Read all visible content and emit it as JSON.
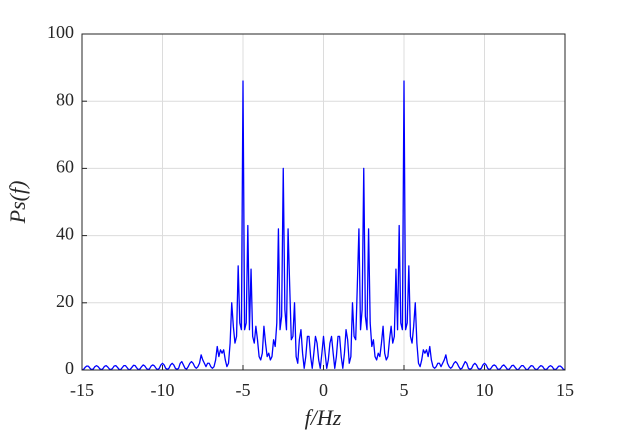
{
  "chart_data": {
    "type": "line",
    "xlabel": "f/Hz",
    "ylabel": "Ps(f)",
    "color": "#0000ff",
    "grid": true,
    "xlim": [
      -15,
      15
    ],
    "xticks": [
      -15,
      -10,
      -5,
      0,
      5,
      10,
      15
    ],
    "ylim": [
      0,
      100
    ],
    "yticks": [
      0,
      20,
      40,
      60,
      80,
      100
    ],
    "x": [
      -15,
      -14.9,
      -14.8,
      -14.7,
      -14.6,
      -14.5,
      -14.4,
      -14.3,
      -14.2,
      -14.1,
      -14,
      -13.9,
      -13.8,
      -13.7,
      -13.6,
      -13.5,
      -13.4,
      -13.3,
      -13.2,
      -13.1,
      -13,
      -12.9,
      -12.8,
      -12.7,
      -12.6,
      -12.5,
      -12.4,
      -12.3,
      -12.2,
      -12.1,
      -12,
      -11.9,
      -11.8,
      -11.7,
      -11.6,
      -11.5,
      -11.4,
      -11.3,
      -11.2,
      -11.1,
      -11,
      -10.9,
      -10.8,
      -10.7,
      -10.6,
      -10.5,
      -10.4,
      -10.3,
      -10.2,
      -10.1,
      -10,
      -9.9,
      -9.8,
      -9.7,
      -9.6,
      -9.5,
      -9.4,
      -9.3,
      -9.2,
      -9.1,
      -9,
      -8.9,
      -8.8,
      -8.7,
      -8.6,
      -8.5,
      -8.4,
      -8.3,
      -8.2,
      -8.1,
      -8,
      -7.9,
      -7.8,
      -7.7,
      -7.6,
      -7.5,
      -7.4,
      -7.3,
      -7.2,
      -7.1,
      -7,
      -6.9,
      -6.8,
      -6.7,
      -6.6,
      -6.5,
      -6.4,
      -6.3,
      -6.2,
      -6.1,
      -6,
      -5.9,
      -5.8,
      -5.7,
      -5.6,
      -5.5,
      -5.4,
      -5.3,
      -5.2,
      -5.1,
      -5,
      -4.9,
      -4.8,
      -4.7,
      -4.6,
      -4.5,
      -4.4,
      -4.3,
      -4.2,
      -4.1,
      -4,
      -3.9,
      -3.8,
      -3.7,
      -3.6,
      -3.5,
      -3.4,
      -3.3,
      -3.2,
      -3.1,
      -3,
      -2.9,
      -2.8,
      -2.7,
      -2.6,
      -2.5,
      -2.4,
      -2.3,
      -2.2,
      -2.1,
      -2,
      -1.9,
      -1.8,
      -1.7,
      -1.6,
      -1.5,
      -1.4,
      -1.3,
      -1.2,
      -1.1,
      -1,
      -0.9,
      -0.8,
      -0.7,
      -0.6,
      -0.5,
      -0.4,
      -0.3,
      -0.2,
      -0.1,
      0,
      0.1,
      0.2,
      0.3,
      0.4,
      0.5,
      0.6,
      0.7,
      0.8,
      0.9,
      1,
      1.1,
      1.2,
      1.3,
      1.4,
      1.5,
      1.6,
      1.7,
      1.8,
      1.9,
      2,
      2.1,
      2.2,
      2.3,
      2.4,
      2.5,
      2.6,
      2.7,
      2.8,
      2.9,
      3,
      3.1,
      3.2,
      3.3,
      3.4,
      3.5,
      3.6,
      3.7,
      3.8,
      3.9,
      4,
      4.1,
      4.2,
      4.3,
      4.4,
      4.5,
      4.6,
      4.7,
      4.8,
      4.9,
      5,
      5.1,
      5.2,
      5.3,
      5.4,
      5.5,
      5.6,
      5.7,
      5.8,
      5.9,
      6,
      6.1,
      6.2,
      6.3,
      6.4,
      6.5,
      6.6,
      6.7,
      6.8,
      6.9,
      7,
      7.1,
      7.2,
      7.3,
      7.4,
      7.5,
      7.6,
      7.7,
      7.8,
      7.9,
      8,
      8.1,
      8.2,
      8.3,
      8.4,
      8.5,
      8.6,
      8.7,
      8.8,
      8.9,
      9,
      9.1,
      9.2,
      9.3,
      9.4,
      9.5,
      9.6,
      9.7,
      9.8,
      9.9,
      10,
      10.1,
      10.2,
      10.3,
      10.4,
      10.5,
      10.6,
      10.7,
      10.8,
      10.9,
      11,
      11.1,
      11.2,
      11.3,
      11.4,
      11.5,
      11.6,
      11.7,
      11.8,
      11.9,
      12,
      12.1,
      12.2,
      12.3,
      12.4,
      12.5,
      12.6,
      12.7,
      12.8,
      12.9,
      13,
      13.1,
      13.2,
      13.3,
      13.4,
      13.5,
      13.6,
      13.7,
      13.8,
      13.9,
      14,
      14.1,
      14.2,
      14.3,
      14.4,
      14.5,
      14.6,
      14.7,
      14.8,
      14.9,
      15
    ],
    "values": [
      0.1,
      0.2,
      0.8,
      1.2,
      1.1,
      0.5,
      0.1,
      0.3,
      1,
      1.3,
      1,
      0.4,
      0.1,
      0.4,
      1.1,
      1.3,
      0.9,
      0.3,
      0.1,
      0.5,
      1.2,
      1.3,
      0.8,
      0.2,
      0.1,
      0.7,
      1.3,
      1.3,
      0.7,
      0.1,
      0.2,
      0.8,
      1.4,
      1.3,
      0.6,
      0.1,
      0.3,
      1,
      1.5,
      1.2,
      0.5,
      0.1,
      0.4,
      1.2,
      1.5,
      1.2,
      0.5,
      0.1,
      0.5,
      1.5,
      2,
      1.5,
      0.5,
      0.2,
      0.5,
      1.5,
      2,
      1.5,
      0.5,
      0.2,
      0.5,
      2,
      2.5,
      1.5,
      0.5,
      0.3,
      1,
      2,
      2.5,
      2,
      1,
      0.5,
      1,
      2,
      4.5,
      3,
      2,
      1,
      2,
      2,
      1,
      0.5,
      1,
      3,
      7,
      4,
      6,
      5,
      6,
      3,
      1,
      2,
      8,
      20,
      13,
      8,
      10,
      31,
      14,
      12,
      86,
      12,
      14,
      43,
      12,
      30,
      10,
      8,
      13,
      9,
      4,
      3,
      5,
      13,
      8,
      4,
      5,
      3,
      4,
      9,
      7,
      14,
      42,
      12,
      16,
      60,
      18,
      12,
      42,
      25,
      9,
      10,
      20,
      4,
      2,
      9,
      12,
      5,
      0.5,
      4,
      10,
      10,
      4,
      0.5,
      5,
      10,
      8,
      3,
      0.5,
      5,
      10,
      5,
      0.5,
      3,
      8,
      10,
      5,
      0.5,
      4,
      10,
      10,
      4,
      0.5,
      5,
      12,
      9,
      2,
      4,
      20,
      10,
      9,
      25,
      42,
      12,
      18,
      60,
      16,
      12,
      42,
      14,
      7,
      9,
      4,
      3,
      5,
      4,
      8,
      13,
      5,
      3,
      4,
      9,
      13,
      8,
      10,
      30,
      12,
      43,
      14,
      12,
      86,
      12,
      14,
      31,
      10,
      8,
      13,
      20,
      8,
      2,
      1,
      3,
      6,
      5,
      6,
      4,
      7,
      3,
      1,
      0.5,
      1,
      2,
      2,
      1,
      2,
      3,
      4.5,
      2,
      1,
      0.5,
      1,
      2,
      2.5,
      2,
      1,
      0.3,
      0.5,
      1.5,
      2.5,
      2,
      0.5,
      0.2,
      0.5,
      1.5,
      2,
      1.5,
      0.5,
      0.2,
      0.5,
      1.5,
      2,
      1.5,
      0.5,
      0.1,
      0.5,
      1.2,
      1.5,
      1.2,
      0.4,
      0.1,
      0.5,
      1.2,
      1.5,
      1,
      0.3,
      0.1,
      0.6,
      1.3,
      1.4,
      0.8,
      0.2,
      0.1,
      0.7,
      1.3,
      1.3,
      0.7,
      0.1,
      0.2,
      0.8,
      1.3,
      1.2,
      0.5,
      0.1,
      0.3,
      0.9,
      1.3,
      1.1,
      0.4,
      0.1,
      0.4,
      1,
      1.3,
      1,
      0.3,
      0.1,
      0.5,
      1.1,
      1.2,
      0.8,
      0.2,
      0.1
    ]
  }
}
